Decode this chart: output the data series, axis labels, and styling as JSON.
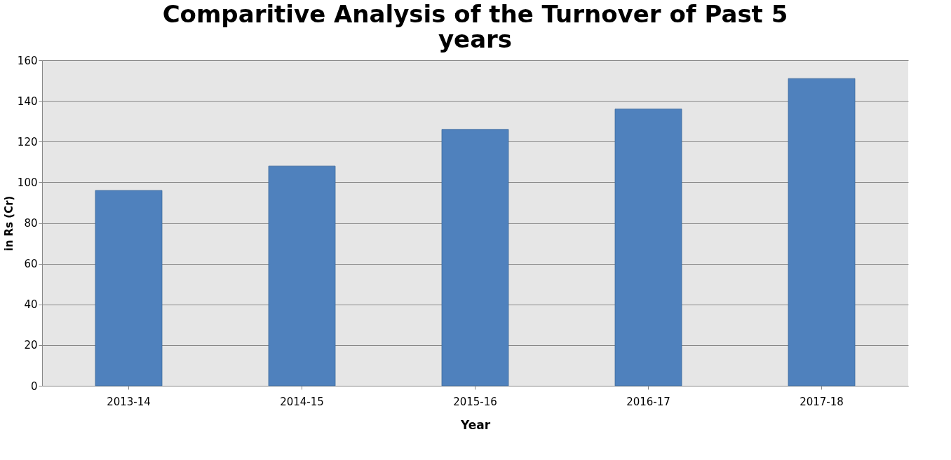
{
  "chart_data": {
    "type": "bar",
    "title": "Comparitive Analysis of the Turnover of Past 5 years",
    "xlabel": "Year",
    "ylabel": "in Rs (Cr)",
    "categories": [
      "2013-14",
      "2014-15",
      "2015-16",
      "2016-17",
      "2017-18"
    ],
    "values": [
      96,
      108,
      126,
      136,
      151
    ],
    "color": "#4f81bd",
    "ylim": [
      0,
      160
    ],
    "yticks": [
      0,
      20,
      40,
      60,
      80,
      100,
      120,
      140,
      160
    ],
    "grid": "y"
  }
}
